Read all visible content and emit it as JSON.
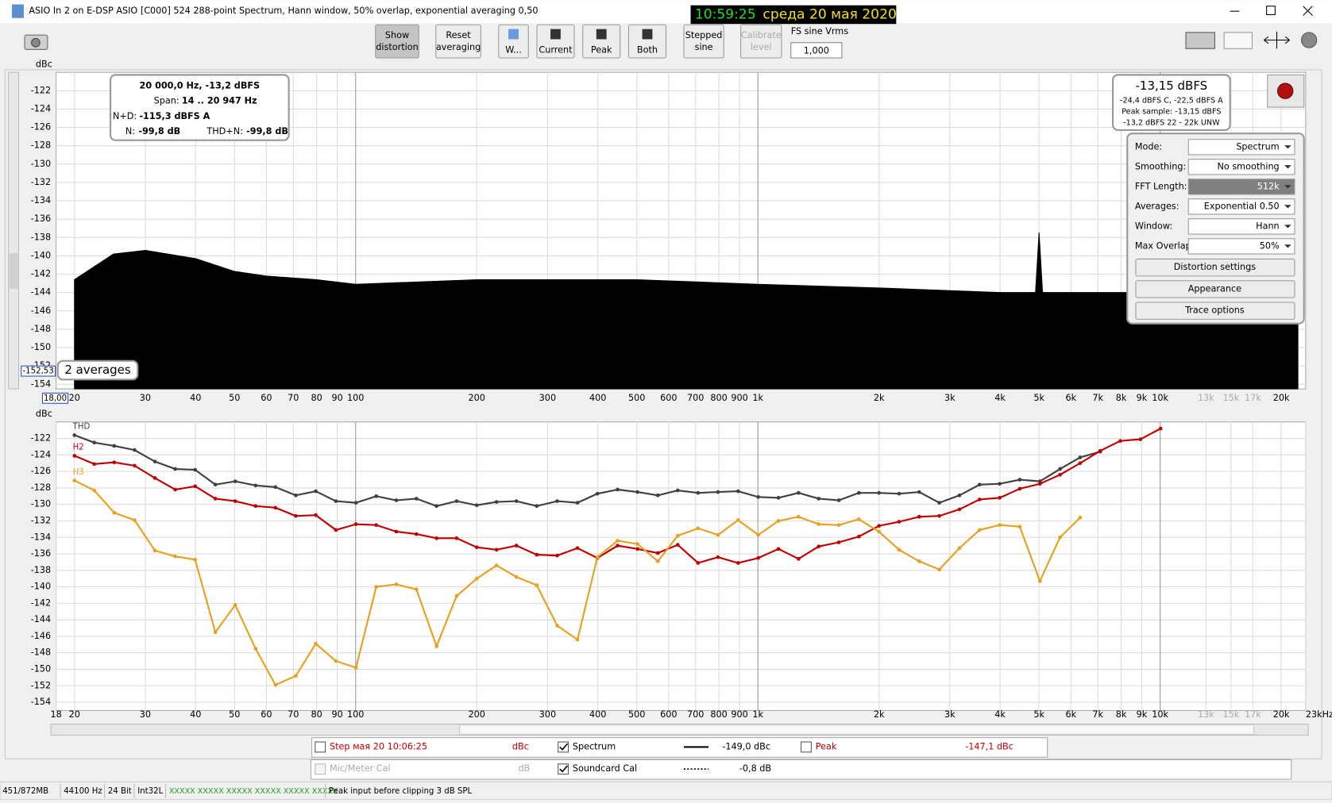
{
  "window": {
    "title": "ASIO In 2 on E-DSP ASIO [C000] 524 288-point Spectrum, Hann window, 50% overlap, exponential averaging 0,50",
    "clock_time": "10:59:25",
    "clock_date": "среда 20 мая 2020"
  },
  "toolbar": {
    "buttons": [
      {
        "lines": [
          "Show",
          "distortion"
        ]
      },
      {
        "lines": [
          "Reset",
          "averaging"
        ]
      },
      {
        "lines": [
          "W..."
        ]
      },
      {
        "lines": [
          "Current"
        ]
      },
      {
        "lines": [
          "Peak"
        ]
      },
      {
        "lines": [
          "Both"
        ]
      },
      {
        "lines": [
          "Stepped",
          "sine"
        ]
      },
      {
        "lines": [
          "Calibrate",
          "level"
        ]
      }
    ],
    "fs_label": "FS sine Vrms",
    "fs_value": "1,000"
  },
  "chart_data": [
    {
      "type": "area",
      "y_label": "dBc",
      "color": "#000000",
      "log_x": true,
      "grid": true,
      "x": [
        20,
        25,
        30,
        40,
        50,
        60,
        80,
        100,
        200,
        500,
        1000,
        2000,
        4000,
        4900,
        5000,
        5100,
        10000,
        20000,
        22000
      ],
      "values": [
        -142.6,
        -139.8,
        -139.4,
        -140.3,
        -141.7,
        -142.2,
        -142.6,
        -143.1,
        -142.6,
        -142.6,
        -143.1,
        -143.5,
        -144.0,
        -144.0,
        -137.5,
        -144.0,
        -144.0,
        -144.5,
        -145.0
      ],
      "xlim": [
        18,
        23000
      ],
      "ylim": [
        -154.5,
        -120
      ],
      "yticks": [
        -122,
        -124,
        -126,
        -128,
        -130,
        -132,
        -134,
        -136,
        -138,
        -140,
        -142,
        -144,
        -146,
        -148,
        -150,
        -152,
        -154
      ],
      "xticks": [
        20,
        30,
        40,
        50,
        60,
        70,
        80,
        90,
        100,
        200,
        300,
        400,
        500,
        600,
        700,
        800,
        900,
        {
          "value": 1000,
          "label": "1k"
        },
        {
          "value": 2000,
          "label": "2k"
        },
        {
          "value": 3000,
          "label": "3k"
        },
        {
          "value": 4000,
          "label": "4k"
        },
        {
          "value": 5000,
          "label": "5k"
        },
        {
          "value": 6000,
          "label": "6k"
        },
        {
          "value": 7000,
          "label": "7k"
        },
        {
          "value": 8000,
          "label": "8k"
        },
        {
          "value": 9000,
          "label": "9k"
        },
        {
          "value": 10000,
          "label": "10k"
        },
        {
          "value": 13000,
          "label": "13k"
        },
        {
          "value": 15000,
          "label": "15k"
        },
        {
          "value": 17000,
          "label": "17k"
        },
        {
          "value": 20000,
          "label": "20k"
        }
      ],
      "cursor_value": "-152,53",
      "x_start": "18,00",
      "averages_label": "2 averages"
    },
    {
      "type": "line",
      "y_label": "dBc",
      "log_x": true,
      "grid": true,
      "x": [
        20,
        22.4,
        25.1,
        28.2,
        31.7,
        35.6,
        39.9,
        44.8,
        50.2,
        56.4,
        63.2,
        71,
        79.6,
        89.3,
        100.2,
        112.5,
        126.2,
        141.6,
        158.9,
        178.3,
        200,
        224,
        251,
        282,
        317,
        356,
        399,
        448,
        502,
        564,
        632,
        710,
        796,
        893,
        1002,
        1125,
        1262,
        1416,
        1589,
        1783,
        2000,
        2244,
        2518,
        2825,
        3170,
        3557,
        3991,
        4477,
        5024,
        5637,
        6325,
        7096,
        7962,
        8934,
        10024
      ],
      "series": [
        {
          "name": "THD",
          "color": "#404040",
          "values": [
            -121.6,
            -122.5,
            -122.9,
            -123.4,
            -124.8,
            -125.7,
            -125.8,
            -127.6,
            -127.2,
            -127.7,
            -127.9,
            -128.9,
            -128.4,
            -129.6,
            -129.8,
            -129.0,
            -129.5,
            -129.3,
            -130.2,
            -129.6,
            -130.1,
            -129.7,
            -129.6,
            -130.2,
            -129.6,
            -129.8,
            -128.7,
            -128.2,
            -128.5,
            -128.9,
            -128.3,
            -128.6,
            -128.5,
            -128.4,
            -129.1,
            -129.2,
            -128.6,
            -129.3,
            -129.5,
            -128.6,
            -128.6,
            -128.7,
            -128.5,
            -129.8,
            -128.9,
            -127.6,
            -127.5,
            -127.0,
            -127.2,
            -125.7,
            -124.3,
            -123.6,
            null,
            null,
            null
          ]
        },
        {
          "name": "H2",
          "color": "#c00000",
          "values": [
            -124.1,
            -125.1,
            -124.9,
            -125.3,
            -126.8,
            -128.2,
            -127.8,
            -129.3,
            -129.6,
            -130.2,
            -130.4,
            -131.4,
            -131.3,
            -133.1,
            -132.4,
            -132.5,
            -133.3,
            -133.6,
            -134.1,
            -134.1,
            -135.2,
            -135.5,
            -135.0,
            -136.1,
            -136.2,
            -135.3,
            -136.5,
            -135.0,
            -135.4,
            -135.9,
            -134.9,
            -137.1,
            -136.4,
            -137.1,
            -136.5,
            -135.4,
            -136.6,
            -135.1,
            -134.6,
            -133.9,
            -132.6,
            -132.1,
            -131.5,
            -131.4,
            -130.6,
            -129.4,
            -129.2,
            -128.1,
            -127.5,
            -126.4,
            -125.0,
            -123.5,
            -122.3,
            -122.1,
            -120.8
          ]
        },
        {
          "name": "H3",
          "color": "#e8a020",
          "values": [
            -127.1,
            -128.3,
            -131.0,
            -131.9,
            -135.6,
            -136.3,
            -136.7,
            -145.5,
            -142.2,
            -147.5,
            -151.9,
            -150.8,
            -146.9,
            -149.0,
            -149.8,
            -140.0,
            -139.7,
            -140.3,
            -147.2,
            -141.1,
            -139.0,
            -137.4,
            -138.8,
            -139.8,
            -144.7,
            -146.4,
            -136.4,
            -134.4,
            -134.8,
            -136.9,
            -133.8,
            -132.9,
            -133.7,
            -131.9,
            -133.7,
            -132.0,
            -131.5,
            -132.4,
            -132.5,
            -131.8,
            -133.3,
            -135.5,
            -136.9,
            -137.9,
            -135.3,
            -133.1,
            -132.5,
            -132.7,
            -139.3,
            -134.0,
            -131.6,
            null,
            null,
            null,
            null
          ]
        }
      ],
      "xlim": [
        18,
        23000
      ],
      "ylim": [
        -155,
        -120
      ],
      "yticks": [
        -122,
        -124,
        -126,
        -128,
        -130,
        -132,
        -134,
        -136,
        -138,
        -140,
        -142,
        -144,
        -146,
        -148,
        -150,
        -152,
        -154
      ],
      "xticks": [
        18,
        20,
        30,
        40,
        50,
        60,
        70,
        80,
        90,
        100,
        200,
        300,
        400,
        500,
        600,
        700,
        800,
        900,
        {
          "value": 1000,
          "label": "1k"
        },
        {
          "value": 2000,
          "label": "2k"
        },
        {
          "value": 3000,
          "label": "3k"
        },
        {
          "value": 4000,
          "label": "4k"
        },
        {
          "value": 5000,
          "label": "5k"
        },
        {
          "value": 6000,
          "label": "6k"
        },
        {
          "value": 7000,
          "label": "7k"
        },
        {
          "value": 8000,
          "label": "8k"
        },
        {
          "value": 9000,
          "label": "9k"
        },
        {
          "value": 10000,
          "label": "10k"
        },
        {
          "value": 13000,
          "label": "13k"
        },
        {
          "value": 15000,
          "label": "15k"
        },
        {
          "value": 17000,
          "label": "17k"
        },
        {
          "value": 20000,
          "label": "20k"
        },
        {
          "value": 23000,
          "label": "23kHz"
        }
      ]
    }
  ],
  "info_box": {
    "line1": "20 000,0 Hz, -13,2 dBFS",
    "span_label": "Span:",
    "span_value": "14 .. 20 947 Hz",
    "nd_label": "N+D:",
    "nd_value": "-115,3 dBFS A",
    "n_label": "N:",
    "n_value": "-99,8 dB",
    "thdn_label": "THD+N:",
    "thdn_value": "-99,8 dB"
  },
  "level_box": {
    "main": "-13,15 dBFS",
    "line2": "-24,4 dBFS C, -22,5 dBFS A",
    "line3": "Peak sample: -13,15 dBFS",
    "line4": "-13,2 dBFS 22 - 22k UNW"
  },
  "settings": {
    "rows": [
      {
        "label": "Mode:",
        "value": "Spectrum"
      },
      {
        "label": "Smoothing:",
        "value": "No  smoothing"
      },
      {
        "label": "FFT Length:",
        "value": "512k"
      },
      {
        "label": "Averages:",
        "value": "Exponential 0.50"
      },
      {
        "label": "Window:",
        "value": "Hann"
      },
      {
        "label": "Max Overlap:",
        "value": "50%"
      }
    ],
    "buttons": [
      "Distortion settings",
      "Appearance",
      "Trace options"
    ]
  },
  "legend": {
    "step_label": "Step мая 20 10:06:25",
    "step_unit": "dBc",
    "spectrum_label": "Spectrum",
    "spectrum_value": "-149,0 dBc",
    "peak_label": "Peak",
    "peak_value": "-147,1 dBc",
    "cal_label": "Mic/Meter Cal",
    "cal_unit": "dB",
    "soundcard_label": "Soundcard Cal",
    "soundcard_value": "-0,8 dB"
  },
  "status_bar": [
    "451/872MB",
    "44100 Hz",
    "24 Bit",
    "Int32L",
    "XXXXX XXXXX  XXXXX XXXXX  XXXXX XXXXX",
    "Peak input before clipping 3 dB SPL"
  ]
}
